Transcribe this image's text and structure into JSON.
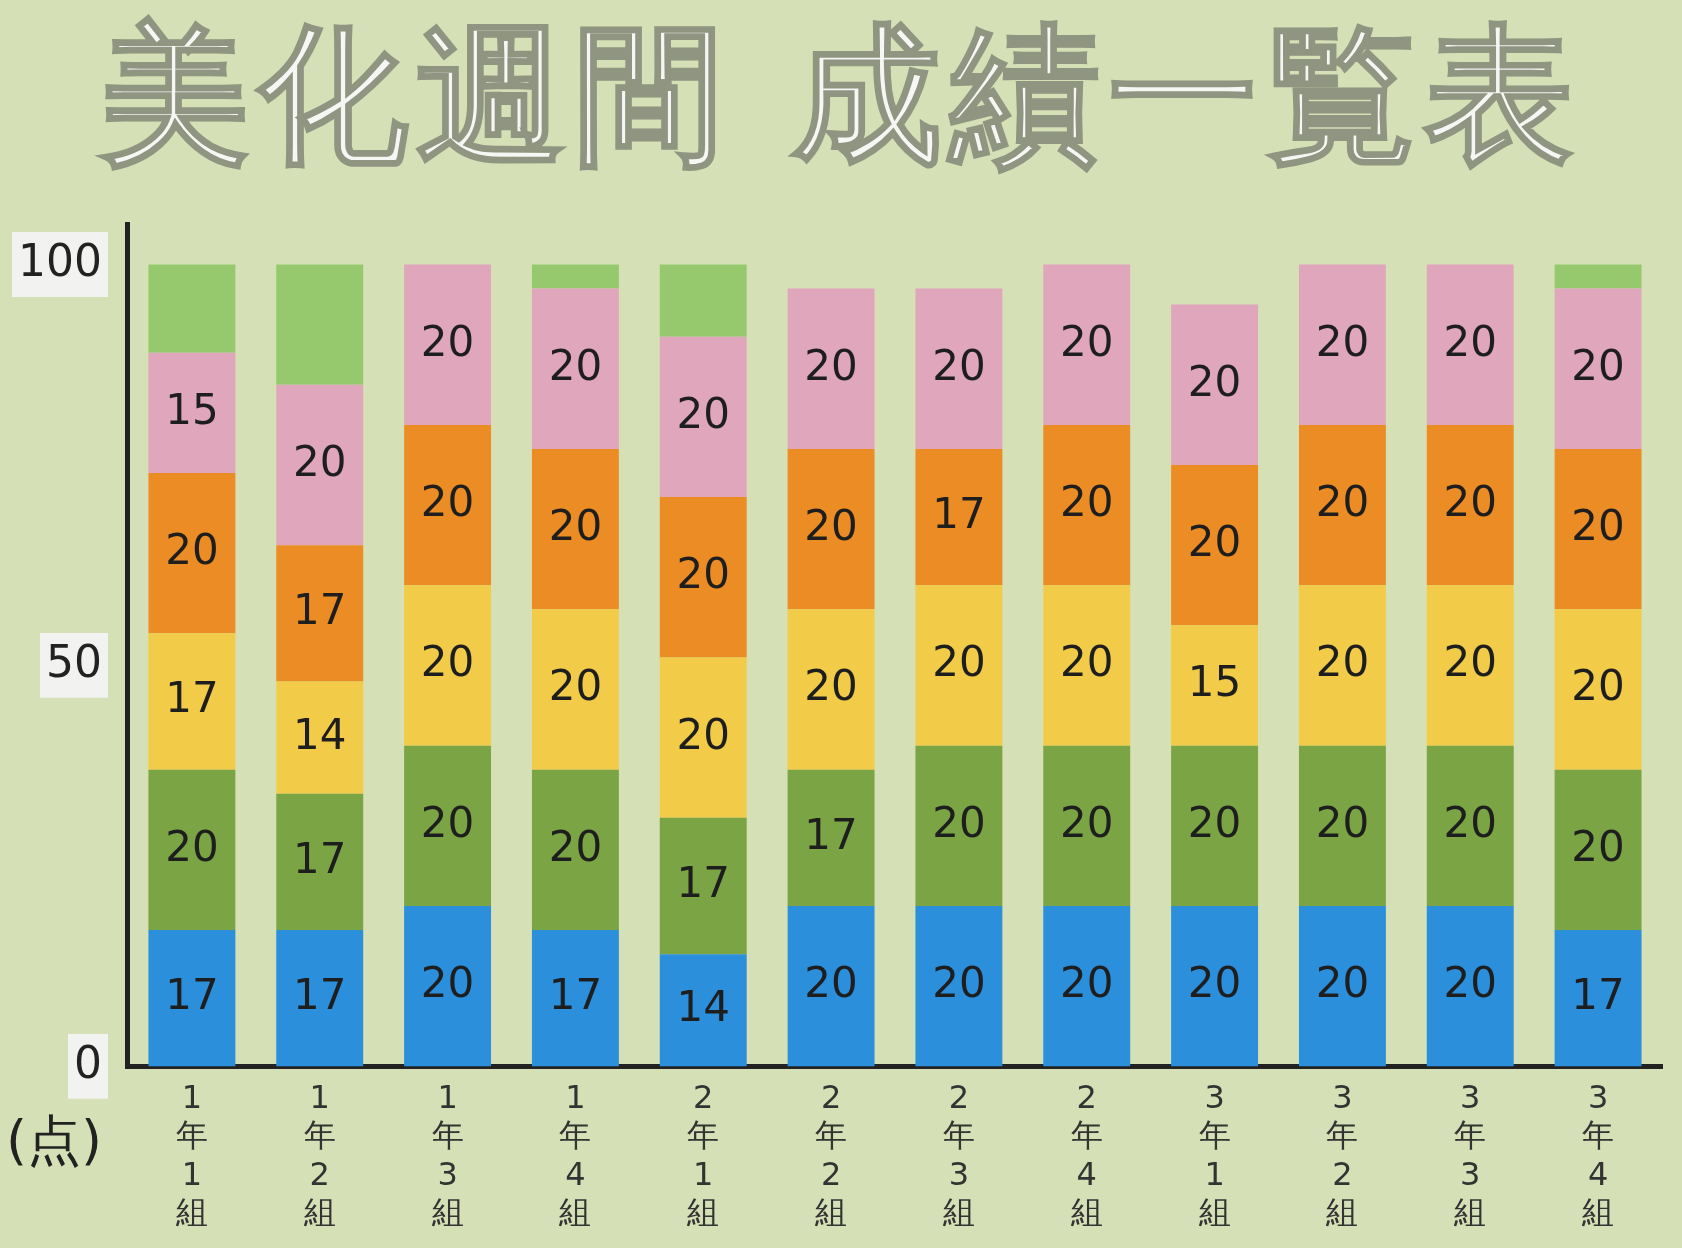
{
  "chart_data": {
    "type": "bar",
    "stacked": true,
    "title": "美化週間 成績一覧表",
    "ylabel": "(点)",
    "categories": [
      "1年1組",
      "1年2組",
      "1年3組",
      "1年4組",
      "2年1組",
      "2年2組",
      "2年3組",
      "2年4組",
      "3年1組",
      "3年2組",
      "3年3組",
      "3年4組"
    ],
    "series": [
      {
        "color": "#2b8fdc",
        "values": [
          17,
          17,
          20,
          17,
          14,
          20,
          20,
          20,
          20,
          20,
          20,
          17
        ],
        "value_labels": [
          "17",
          "17",
          "20",
          "17",
          "14",
          "20",
          "20",
          "20",
          "20",
          "20",
          "20",
          "17"
        ]
      },
      {
        "color": "#7ba444",
        "values": [
          20,
          17,
          20,
          20,
          17,
          17,
          20,
          20,
          20,
          20,
          20,
          20
        ],
        "value_labels": [
          "20",
          "17",
          "20",
          "20",
          "17",
          "17",
          "20",
          "20",
          "20",
          "20",
          "20",
          "20"
        ]
      },
      {
        "color": "#f2cc48",
        "values": [
          17,
          14,
          20,
          20,
          20,
          20,
          20,
          20,
          15,
          20,
          20,
          20
        ],
        "value_labels": [
          "17",
          "14",
          "20",
          "20",
          "20",
          "20",
          "20",
          "20",
          "15",
          "20",
          "20",
          "20"
        ]
      },
      {
        "color": "#ec8c24",
        "values": [
          20,
          17,
          20,
          20,
          20,
          20,
          17,
          20,
          20,
          20,
          20,
          20
        ],
        "value_labels": [
          "20",
          "17",
          "20",
          "20",
          "20",
          "20",
          "17",
          "20",
          "20",
          "20",
          "20",
          "20"
        ]
      },
      {
        "color": "#e0a6bc",
        "values": [
          15,
          20,
          20,
          20,
          20,
          20,
          20,
          20,
          20,
          20,
          20,
          20
        ],
        "value_labels": [
          "15",
          "20",
          "20",
          "20",
          "20",
          "20",
          "20",
          "20",
          "20",
          "20",
          "20",
          "20"
        ]
      },
      {
        "color": "#96c86e",
        "values": [
          11,
          15,
          null,
          3,
          9,
          null,
          null,
          null,
          null,
          null,
          null,
          3
        ]
      }
    ],
    "ylim": [
      0,
      105
    ],
    "yticks": [
      0,
      50,
      100
    ],
    "grid": false,
    "legend": false
  }
}
